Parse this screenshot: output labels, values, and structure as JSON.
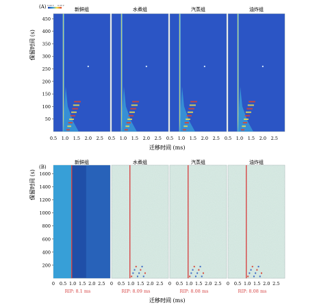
{
  "panels": {
    "A": {
      "label": "(A)",
      "colorbar_low": "0.00 V",
      "colorbar_high": "0.35 V"
    },
    "B": {
      "label": "(B)"
    }
  },
  "chart_data": [
    {
      "type": "heatmap",
      "panel": "(A)",
      "groups": [
        "新鲜组",
        "水煮组",
        "汽蒸组",
        "油炸组"
      ],
      "xlabel": "迁移时间 (ms)",
      "ylabel": "保留时间 (s)",
      "x_ticks": [
        "0.5",
        "1.0",
        "1.5",
        "2.0",
        "2.5"
      ],
      "xlim": [
        0.5,
        2.95
      ],
      "y_ticks": [
        50,
        100,
        150,
        200,
        250,
        300,
        350,
        400,
        450
      ],
      "ylim": [
        0,
        470
      ],
      "background_color": "#2b55c5",
      "colormap": [
        "#1c3fae",
        "#3a9dd8",
        "#f2e34a",
        "#e0432a"
      ]
    },
    {
      "type": "heatmap",
      "panel": "(B)",
      "groups": [
        "新鲜组",
        "水煮组",
        "汽蒸组",
        "油炸组"
      ],
      "xlabel": "迁移时间 (ms)",
      "ylabel": "保留时间 (s)",
      "x_ticks": [
        "0",
        "0.5",
        "1.0",
        "1.5",
        "2.0",
        "2.5"
      ],
      "xlim": [
        0,
        2.95
      ],
      "y_ticks": [
        200,
        400,
        600,
        800,
        1000,
        1200,
        1400,
        1600
      ],
      "ylim": [
        0,
        1730
      ],
      "rip_labels": [
        "RIP: 8.1 ms",
        "RIP: 8.09 ms",
        "RIP: 8.08 ms",
        "RIP: 8.08 ms"
      ],
      "rip_x": 0.95,
      "rip_color": "#d64545",
      "reference_background_color": "#1f4fa8",
      "difference_background_color": "#cfe3dc"
    }
  ]
}
